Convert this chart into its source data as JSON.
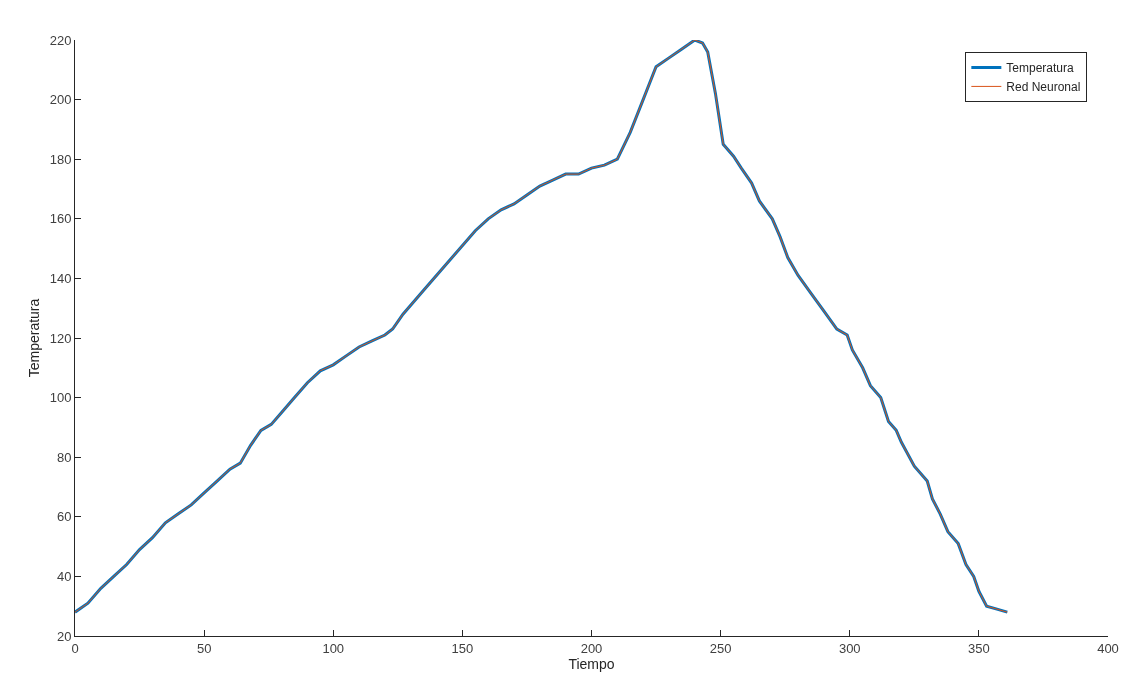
{
  "chart_data": {
    "type": "line",
    "xlabel": "Tiempo",
    "ylabel": "Temperatura",
    "x": [
      0,
      5,
      10,
      15,
      20,
      25,
      30,
      35,
      40,
      45,
      50,
      55,
      60,
      64,
      68,
      72,
      76,
      80,
      85,
      90,
      95,
      100,
      105,
      110,
      115,
      120,
      123,
      127,
      135,
      145,
      155,
      160,
      165,
      170,
      175,
      180,
      185,
      190,
      195,
      200,
      205,
      210,
      215,
      220,
      225,
      230,
      235,
      240,
      243,
      245,
      248,
      251,
      255,
      258,
      262,
      265,
      270,
      273,
      276,
      280,
      285,
      290,
      295,
      299,
      301,
      305,
      308,
      312,
      315,
      318,
      320,
      325,
      330,
      332,
      335,
      338,
      342,
      345,
      348,
      350,
      353,
      357,
      361
    ],
    "series": [
      {
        "name": "Temperatura",
        "color": "#0072bd",
        "values": [
          28,
          31,
          36,
          40,
          44,
          49,
          53,
          58,
          61,
          64,
          68,
          72,
          76,
          78,
          84,
          89,
          91,
          95,
          100,
          105,
          109,
          111,
          114,
          117,
          119,
          121,
          123,
          128,
          136,
          146,
          156,
          160,
          163,
          165,
          168,
          171,
          173,
          175,
          175,
          177,
          178,
          180,
          189,
          200,
          211,
          214,
          217,
          220,
          219,
          216,
          202,
          185,
          181,
          177,
          172,
          166,
          160,
          154,
          147,
          141,
          135,
          129,
          123,
          121,
          116,
          110,
          104,
          100,
          92,
          89,
          85,
          77,
          72,
          66,
          61,
          55,
          51,
          44,
          40,
          35,
          30,
          29,
          28
        ]
      },
      {
        "name": "Red Neuronal",
        "color": "#d95319",
        "values": [
          28,
          31,
          36,
          40,
          44,
          49,
          53,
          58,
          61,
          64,
          68,
          72,
          76,
          78,
          84,
          89,
          91,
          95,
          100,
          105,
          109,
          111,
          114,
          117,
          119,
          121,
          123,
          128,
          136,
          146,
          156,
          160,
          163,
          165,
          168,
          171,
          173,
          175,
          175,
          177,
          178,
          180,
          189,
          200,
          211,
          214,
          217,
          220,
          219,
          216,
          202,
          185,
          181,
          177,
          172,
          166,
          160,
          154,
          147,
          141,
          135,
          129,
          123,
          121,
          116,
          110,
          104,
          100,
          92,
          89,
          85,
          77,
          72,
          66,
          61,
          55,
          51,
          44,
          40,
          35,
          30,
          29,
          28
        ]
      }
    ],
    "xlim": [
      0,
      400
    ],
    "xticks": [
      0,
      50,
      100,
      150,
      200,
      250,
      300,
      350,
      400
    ],
    "ylim": [
      20,
      220
    ],
    "yticks": [
      20,
      40,
      60,
      80,
      100,
      120,
      140,
      160,
      180,
      200,
      220
    ],
    "legend": "top right",
    "line_style": "solid",
    "marker": "none"
  }
}
